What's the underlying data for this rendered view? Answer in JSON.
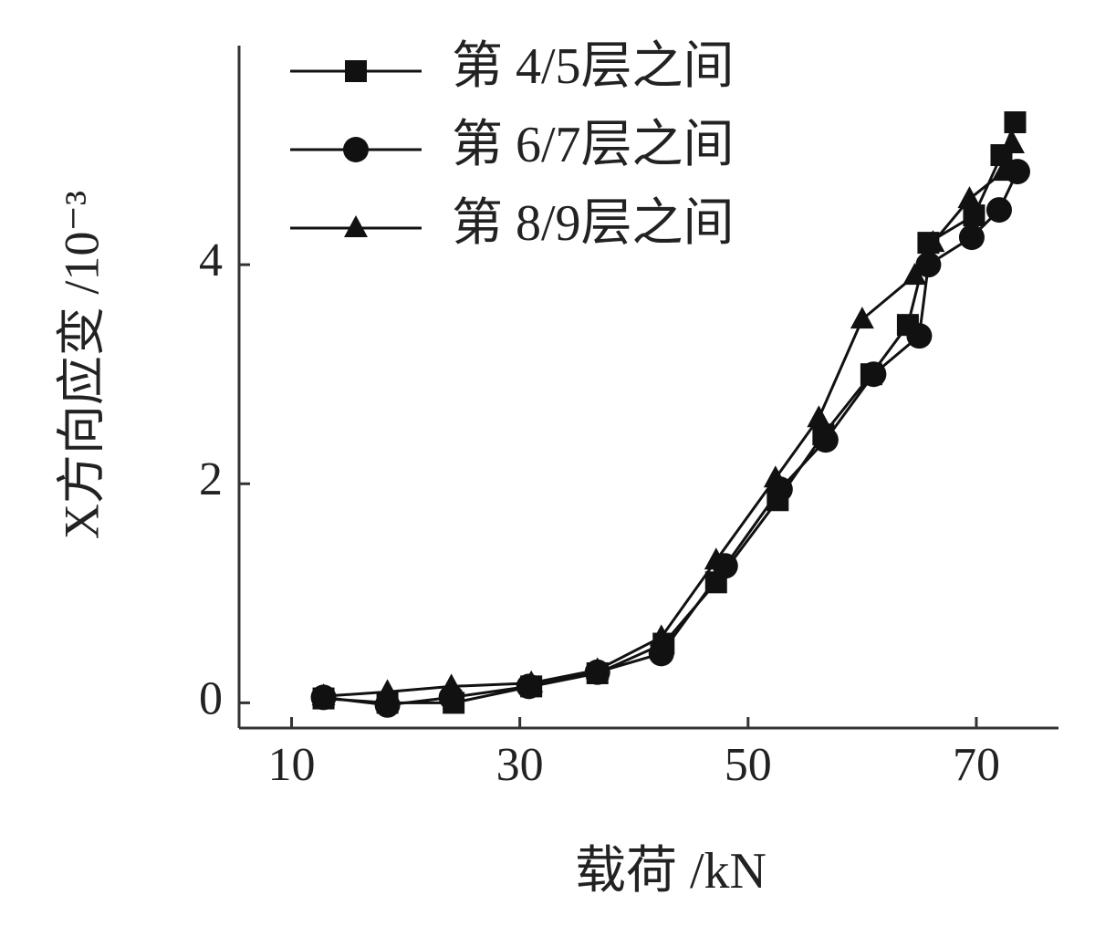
{
  "chart_data": {
    "type": "line",
    "x_label": "载荷 /kN",
    "y_label": "X方向应变 /10⁻³",
    "xlim": [
      5.4,
      77.2
    ],
    "ylim": [
      -0.23,
      6.0
    ],
    "xticks": [
      10,
      30,
      50,
      70
    ],
    "yticks": [
      0,
      2,
      4
    ],
    "legend": "upper left",
    "series": [
      {
        "name": "第 4/5层之间",
        "color": "#111111",
        "marker": "square",
        "x": [
          12.8,
          18.4,
          24.2,
          31,
          36.8,
          42.6,
          47.2,
          52.6,
          56.6,
          60.8,
          64,
          65.8,
          69.8,
          72.2,
          73.4
        ],
        "values": [
          0.04,
          0.0,
          0.0,
          0.15,
          0.27,
          0.54,
          1.1,
          1.85,
          2.45,
          3.0,
          3.45,
          4.2,
          4.45,
          5.0,
          5.3
        ]
      },
      {
        "name": "第 6/7层之间",
        "color": "#111111",
        "marker": "circle",
        "x": [
          12.8,
          18.4,
          24,
          30.8,
          36.8,
          42.4,
          48,
          52.8,
          56.8,
          61,
          65,
          65.8,
          69.6,
          72,
          73.6
        ],
        "values": [
          0.05,
          -0.02,
          0.05,
          0.15,
          0.28,
          0.45,
          1.25,
          1.95,
          2.4,
          3.0,
          3.35,
          4.0,
          4.25,
          4.5,
          4.85
        ]
      },
      {
        "name": "第 8/9层之间",
        "color": "#111111",
        "marker": "triangle",
        "x": [
          12.8,
          18.4,
          24,
          31,
          36.8,
          42.4,
          47.2,
          52.4,
          56.2,
          60,
          64.6,
          66.2,
          69.4,
          72.4,
          73.2
        ],
        "values": [
          0.06,
          0.1,
          0.15,
          0.18,
          0.3,
          0.6,
          1.3,
          2.05,
          2.6,
          3.5,
          3.9,
          4.2,
          4.6,
          4.85,
          5.1
        ]
      }
    ]
  }
}
